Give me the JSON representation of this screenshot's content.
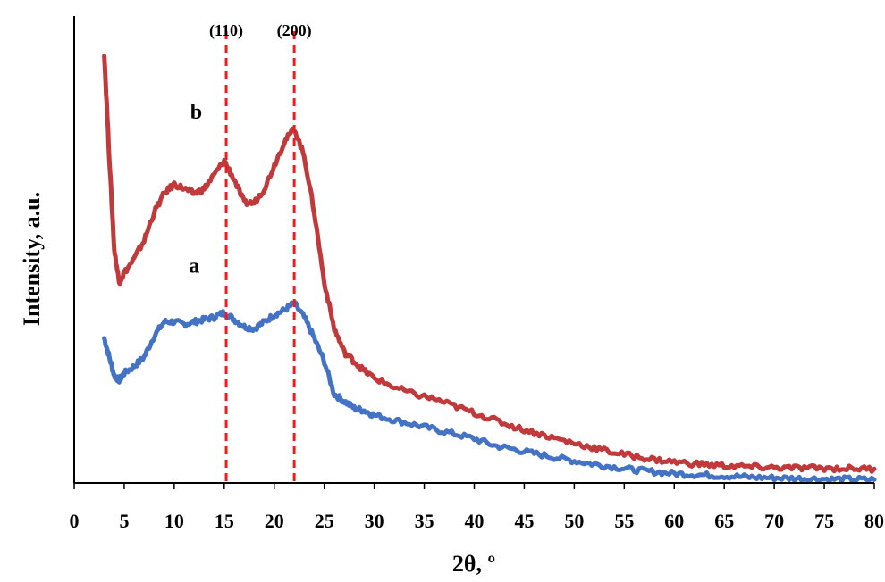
{
  "chart_data": {
    "type": "line",
    "title": "",
    "xlabel": "2θ, º",
    "ylabel": "Intensity, a.u.",
    "xlim": [
      0,
      80
    ],
    "xticks": [
      0,
      5,
      10,
      15,
      20,
      25,
      30,
      35,
      40,
      45,
      50,
      55,
      60,
      65,
      70,
      75,
      80
    ],
    "y_ticks_shown": false,
    "grid": false,
    "legend": "none",
    "annotations": [
      {
        "label": "(110)",
        "x": 15.2,
        "style": "dashed-vertical",
        "color": "#ee1c1c"
      },
      {
        "label": "(200)",
        "x": 22.0,
        "style": "dashed-vertical",
        "color": "#ee1c1c"
      }
    ],
    "series": [
      {
        "name": "a",
        "color": "#4472c4",
        "x": [
          3,
          3.5,
          4,
          4.5,
          5,
          6,
          7,
          8,
          9,
          10,
          11,
          12,
          13,
          14,
          15,
          16,
          17,
          18,
          19,
          20,
          21,
          22,
          23,
          24,
          25,
          26,
          27,
          28,
          29,
          30,
          32,
          34,
          36,
          38,
          40,
          42,
          44,
          46,
          48,
          50,
          52,
          54,
          56,
          58,
          60,
          62,
          64,
          66,
          68,
          70,
          72,
          74,
          76,
          78,
          80
        ],
        "values": [
          0.31,
          0.27,
          0.23,
          0.22,
          0.235,
          0.25,
          0.27,
          0.315,
          0.345,
          0.345,
          0.34,
          0.345,
          0.35,
          0.355,
          0.365,
          0.35,
          0.335,
          0.33,
          0.345,
          0.36,
          0.37,
          0.385,
          0.355,
          0.31,
          0.26,
          0.19,
          0.175,
          0.16,
          0.155,
          0.145,
          0.135,
          0.125,
          0.115,
          0.105,
          0.095,
          0.08,
          0.072,
          0.063,
          0.055,
          0.047,
          0.04,
          0.034,
          0.028,
          0.024,
          0.02,
          0.018,
          0.016,
          0.014,
          0.012,
          0.011,
          0.01,
          0.009,
          0.008,
          0.008,
          0.007
        ]
      },
      {
        "name": "b",
        "color": "#c0393b",
        "x": [
          3,
          3.5,
          4,
          4.5,
          5,
          6,
          7,
          8,
          9,
          10,
          11,
          12,
          13,
          14,
          15,
          16,
          17,
          18,
          19,
          20,
          21,
          22,
          23,
          24,
          25,
          26,
          27,
          28,
          29,
          30,
          32,
          34,
          36,
          38,
          40,
          42,
          44,
          46,
          48,
          50,
          52,
          54,
          56,
          58,
          60,
          62,
          64,
          66,
          68,
          70,
          72,
          74,
          76,
          78,
          80
        ],
        "values": [
          0.92,
          0.7,
          0.5,
          0.43,
          0.45,
          0.48,
          0.52,
          0.58,
          0.62,
          0.64,
          0.63,
          0.62,
          0.63,
          0.66,
          0.69,
          0.65,
          0.6,
          0.6,
          0.63,
          0.68,
          0.73,
          0.76,
          0.7,
          0.58,
          0.43,
          0.33,
          0.28,
          0.26,
          0.24,
          0.225,
          0.205,
          0.19,
          0.18,
          0.165,
          0.15,
          0.135,
          0.12,
          0.108,
          0.096,
          0.085,
          0.075,
          0.065,
          0.057,
          0.05,
          0.045,
          0.041,
          0.038,
          0.036,
          0.034,
          0.033,
          0.032,
          0.032,
          0.031,
          0.031,
          0.03
        ]
      }
    ]
  }
}
